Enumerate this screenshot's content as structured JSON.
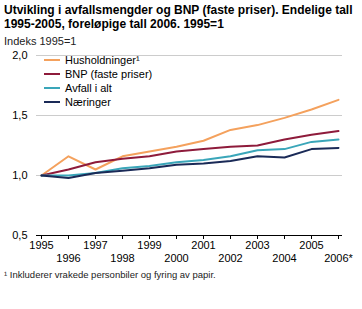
{
  "chart_data": {
    "type": "line",
    "title": "Utvikling i avfallsmengder og BNP (faste priser). Endelige tall 1995-2005, foreløpige tall 2006. 1995=1",
    "y_label": "Indeks 1995=1",
    "footnote": "¹ Inkluderer vrakede personbiler og fyring av papir.",
    "x": [
      "1995",
      "1996",
      "1997",
      "1998",
      "1999",
      "2000",
      "2001",
      "2002",
      "2003",
      "2004",
      "2005",
      "2006*"
    ],
    "series": [
      {
        "name": "Husholdninger¹",
        "color": "#f4a15d",
        "values": [
          1.0,
          1.16,
          1.05,
          1.16,
          1.2,
          1.24,
          1.29,
          1.38,
          1.42,
          1.48,
          1.55,
          1.63
        ]
      },
      {
        "name": "BNP (faste priser)",
        "color": "#8e1b3b",
        "values": [
          1.0,
          1.05,
          1.11,
          1.14,
          1.16,
          1.2,
          1.22,
          1.24,
          1.25,
          1.3,
          1.34,
          1.37
        ]
      },
      {
        "name": "Avfall i alt",
        "color": "#3aa6b9",
        "values": [
          1.0,
          1.0,
          1.02,
          1.06,
          1.08,
          1.11,
          1.13,
          1.16,
          1.21,
          1.22,
          1.28,
          1.3
        ]
      },
      {
        "name": "Næringer",
        "color": "#1a2a57",
        "values": [
          1.0,
          0.98,
          1.02,
          1.04,
          1.06,
          1.09,
          1.1,
          1.12,
          1.16,
          1.15,
          1.22,
          1.23
        ]
      }
    ],
    "ylim": [
      0.5,
      2.0
    ],
    "yticks": [
      {
        "value": 0.5,
        "label": "0,5"
      },
      {
        "value": 1.0,
        "label": "1,0"
      },
      {
        "value": 1.5,
        "label": "1,5"
      },
      {
        "value": 2.0,
        "label": "2,0"
      }
    ],
    "grid": true,
    "legend": "top-left"
  }
}
